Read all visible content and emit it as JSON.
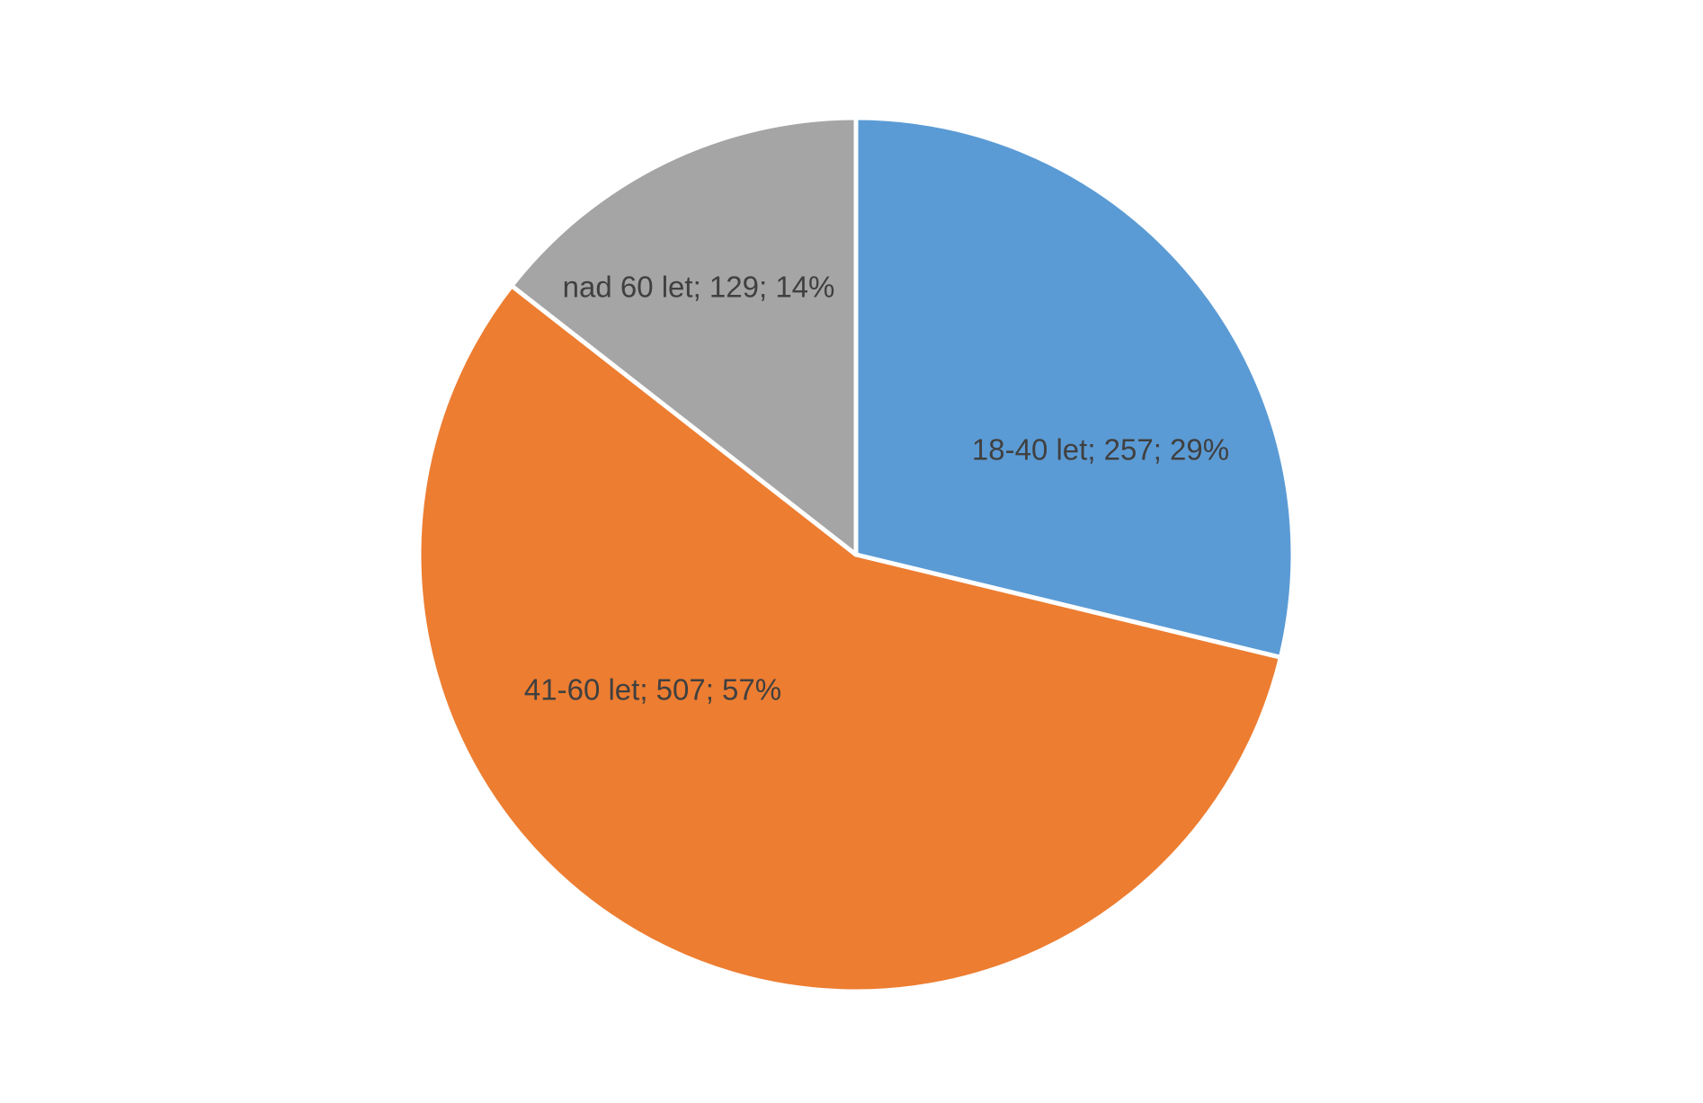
{
  "chart_data": {
    "type": "pie",
    "values": [
      257,
      507,
      129
    ],
    "value_labels": [
      "18-40 let; 257; 29%",
      "41-60 let; 507; 57%",
      "nad 60 let; 129; 14%"
    ],
    "colors": [
      "#5b9bd5",
      "#ed7d31",
      "#a5a5a5"
    ]
  }
}
